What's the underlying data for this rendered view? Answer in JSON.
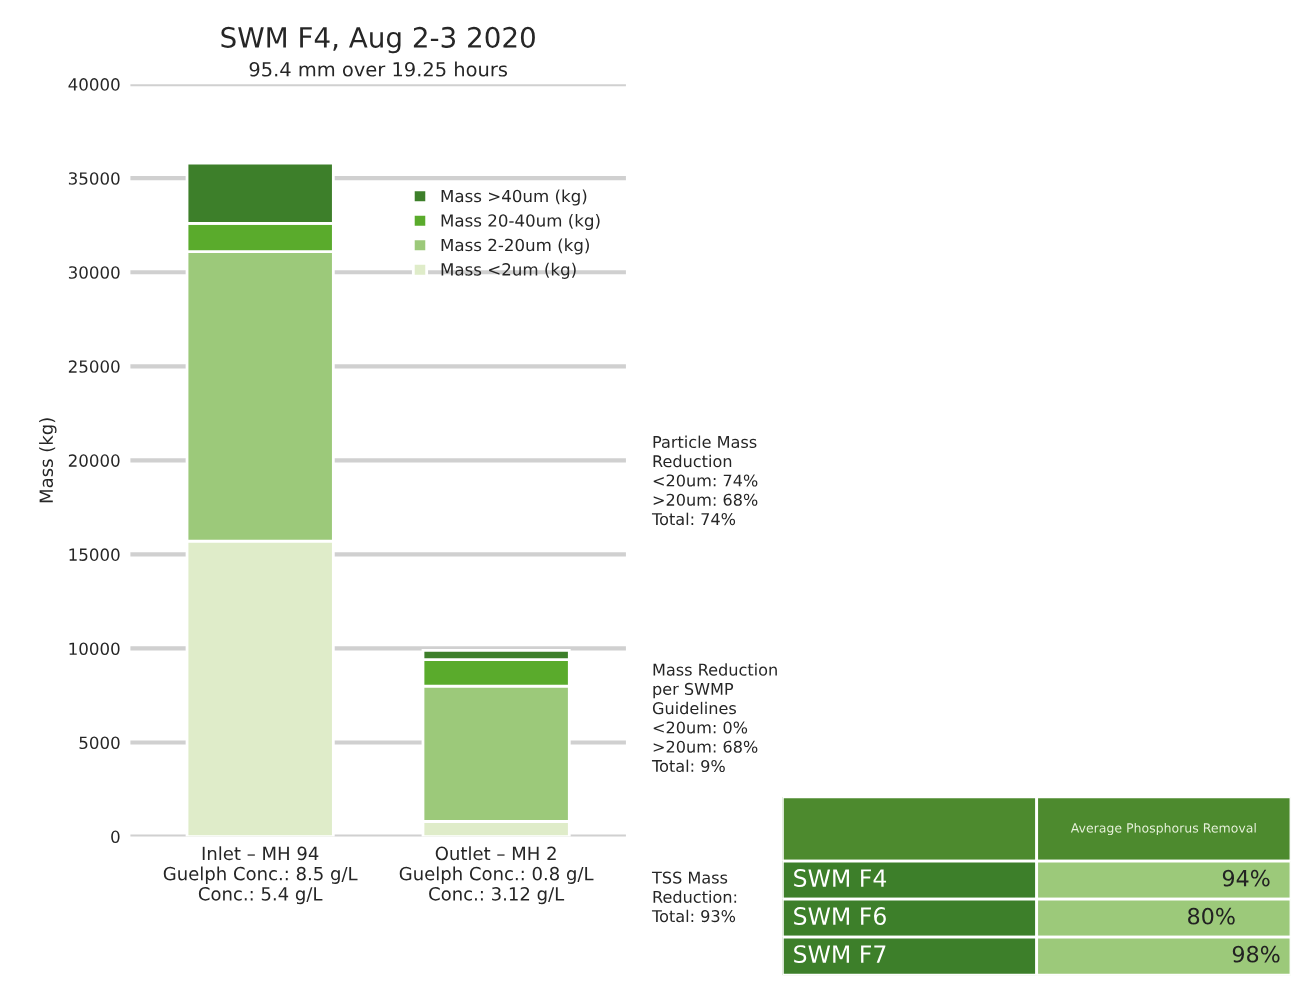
{
  "chart_data": [
    {
      "type": "bar",
      "title": "SWM F4, Aug 2-3 2020",
      "subtitle": "95.4 mm over 19.25 hours",
      "ylabel": "Mass (kg)",
      "categories": [
        "Inlet – MH 94\nGuelph Conc.: 8.5 g/L\nConc.: 5.4 g/L",
        "Outlet – MH 2\nGuelph Conc.: 0.8 g/L\nConc.: 3.12 g/L"
      ],
      "stacked": true,
      "series": [
        {
          "name": "Mass <2um (kg)",
          "color": "#dfecc9",
          "values": [
            15700,
            800
          ]
        },
        {
          "name": "Mass 2-20um (kg)",
          "color": "#9cc97a",
          "values": [
            15400,
            7200
          ]
        },
        {
          "name": "Mass 20-40um (kg)",
          "color": "#5aab2c",
          "values": [
            1500,
            1400
          ]
        },
        {
          "name": "Mass >40um (kg)",
          "color": "#3d7f2a",
          "values": [
            3200,
            500
          ]
        }
      ],
      "ylim": [
        0,
        40000
      ],
      "yticks": [
        0,
        5000,
        10000,
        15000,
        20000,
        25000,
        30000,
        35000,
        40000
      ],
      "grid": "y",
      "legend": "top right",
      "annotations": [
        "Particle Mass\nReduction\n<20um: 74%\n>20um: 68%\nTotal: 74%",
        "Mass Reduction\nper SWMP\nGuidelines\n<20um: 0%\n>20um: 68%\nTotal: 9%",
        "TSS Mass\nReduction:\nTotal: 93%"
      ]
    },
    {
      "type": "other",
      "title": "Average Phosphorus Removal",
      "categories": [
        "SWM F4",
        "SWM F6",
        "SWM F7"
      ],
      "values": [
        94,
        80,
        98
      ],
      "value_labels": [
        "94%",
        "80%",
        "98%"
      ]
    }
  ]
}
